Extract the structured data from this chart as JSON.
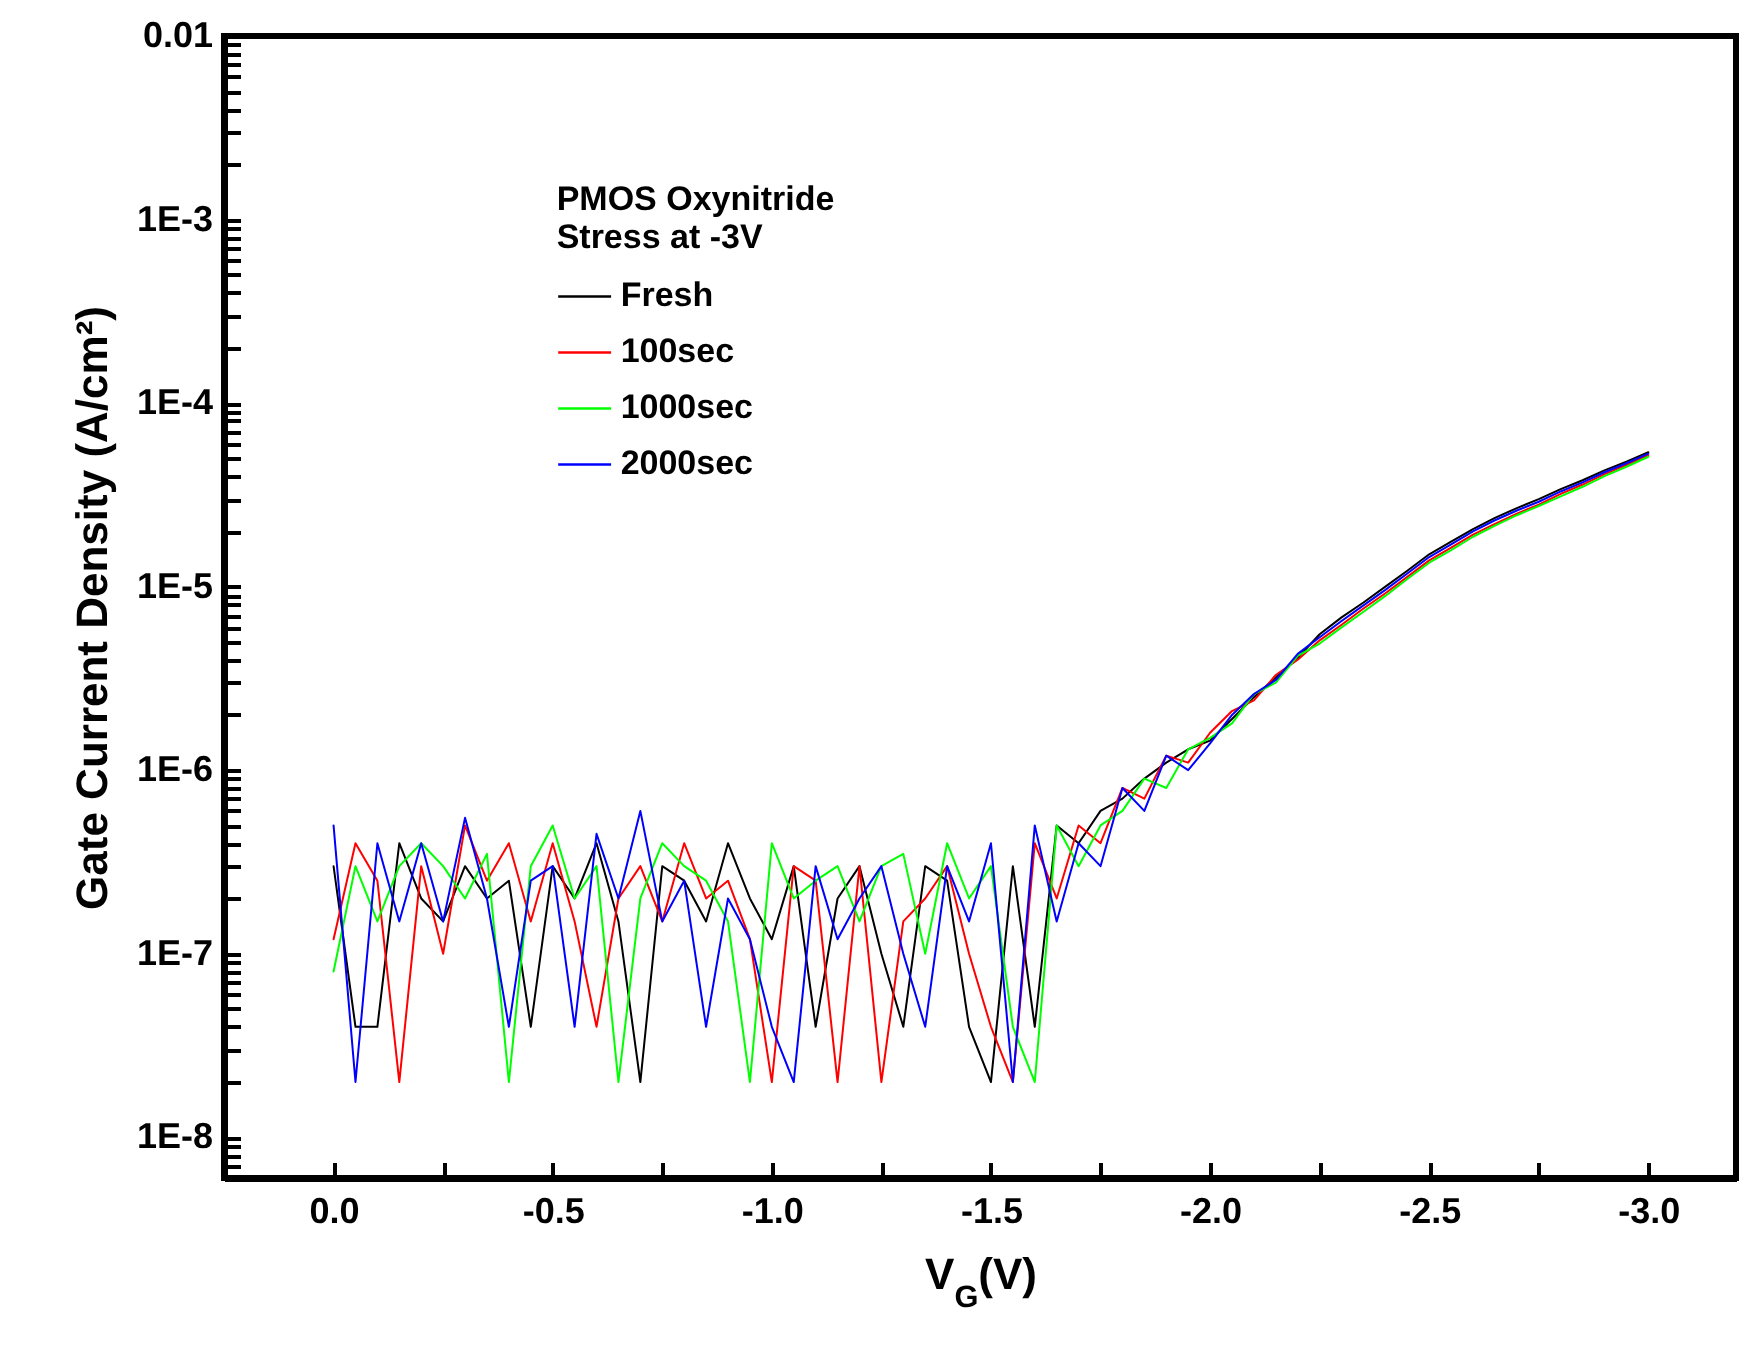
{
  "chart_data": {
    "type": "line",
    "xlabel": "V$_{G}$(V)",
    "ylabel": "Gate Current Density (A/cm²)",
    "legend_title": "PMOS Oxynitride\nStress at -3V",
    "legend": "top left",
    "grid": false,
    "log": true,
    "xlim": [
      0.25,
      -3.2
    ],
    "xticks": [
      {
        "value": 0,
        "label": "0.0"
      },
      {
        "value": -0.25,
        "label": null
      },
      -0.5,
      {
        "value": -0.75,
        "label": null
      },
      {
        "value": -1,
        "label": "-1.0"
      },
      {
        "value": -1.25,
        "label": null
      },
      -1.5,
      {
        "value": -1.75,
        "label": null
      },
      {
        "value": -2,
        "label": "-2.0"
      },
      {
        "value": -2.25,
        "label": null
      },
      -2.5,
      {
        "value": -2.75,
        "label": null
      },
      {
        "value": -3,
        "label": "-3.0"
      }
    ],
    "ylim": [
      6e-09,
      0.01
    ],
    "yticks": [
      {
        "value": 6e-09,
        "label": null
      },
      {
        "value": 7e-09,
        "label": null
      },
      {
        "value": 8e-09,
        "label": null
      },
      {
        "value": 9e-09,
        "label": null
      },
      {
        "value": 1e-08,
        "label": "1E-8"
      },
      {
        "value": 2e-08,
        "label": null
      },
      {
        "value": 3e-08,
        "label": null
      },
      {
        "value": 4e-08,
        "label": null
      },
      {
        "value": 5e-08,
        "label": null
      },
      {
        "value": 6e-08,
        "label": null
      },
      {
        "value": 7e-08,
        "label": null
      },
      {
        "value": 8e-08,
        "label": null
      },
      {
        "value": 9e-08,
        "label": null
      },
      {
        "value": 1e-07,
        "label": "1E-7"
      },
      {
        "value": 2e-07,
        "label": null
      },
      {
        "value": 3e-07,
        "label": null
      },
      {
        "value": 4e-07,
        "label": null
      },
      {
        "value": 5e-07,
        "label": null
      },
      {
        "value": 6e-07,
        "label": null
      },
      {
        "value": 7e-07,
        "label": null
      },
      {
        "value": 8e-07,
        "label": null
      },
      {
        "value": 9e-07,
        "label": null
      },
      {
        "value": 1e-06,
        "label": "1E-6"
      },
      {
        "value": 2e-06,
        "label": null
      },
      {
        "value": 3e-06,
        "label": null
      },
      {
        "value": 4e-06,
        "label": null
      },
      {
        "value": 5e-06,
        "label": null
      },
      {
        "value": 6e-06,
        "label": null
      },
      {
        "value": 7e-06,
        "label": null
      },
      {
        "value": 8e-06,
        "label": null
      },
      {
        "value": 9e-06,
        "label": null
      },
      {
        "value": 1e-05,
        "label": "1E-5"
      },
      {
        "value": 2e-05,
        "label": null
      },
      {
        "value": 3e-05,
        "label": null
      },
      {
        "value": 4e-05,
        "label": null
      },
      {
        "value": 5e-05,
        "label": null
      },
      {
        "value": 6e-05,
        "label": null
      },
      {
        "value": 7e-05,
        "label": null
      },
      {
        "value": 8e-05,
        "label": null
      },
      {
        "value": 9e-05,
        "label": null
      },
      {
        "value": 0.0001,
        "label": "1E-4"
      },
      {
        "value": 0.0002,
        "label": null
      },
      {
        "value": 0.0003,
        "label": null
      },
      {
        "value": 0.0004,
        "label": null
      },
      {
        "value": 0.0005,
        "label": null
      },
      {
        "value": 0.0006,
        "label": null
      },
      {
        "value": 0.0007,
        "label": null
      },
      {
        "value": 0.0008,
        "label": null
      },
      {
        "value": 0.0009,
        "label": null
      },
      {
        "value": 0.001,
        "label": "1E-3"
      },
      {
        "value": 0.002,
        "label": null
      },
      {
        "value": 0.003,
        "label": null
      },
      {
        "value": 0.004,
        "label": null
      },
      {
        "value": 0.005,
        "label": null
      },
      {
        "value": 0.006,
        "label": null
      },
      {
        "value": 0.007,
        "label": null
      },
      {
        "value": 0.008,
        "label": null
      },
      {
        "value": 0.009,
        "label": null
      },
      0.01
    ],
    "x": [
      0,
      -0.05,
      -0.1,
      -0.15,
      -0.2,
      -0.25,
      -0.3,
      -0.35,
      -0.4,
      -0.45,
      -0.5,
      -0.55,
      -0.6,
      -0.65,
      -0.7,
      -0.75,
      -0.8,
      -0.85,
      -0.9,
      -0.95,
      -1,
      -1.05,
      -1.1,
      -1.15,
      -1.2,
      -1.25,
      -1.3,
      -1.35,
      -1.4,
      -1.45,
      -1.5,
      -1.55,
      -1.6,
      -1.65,
      -1.7,
      -1.75,
      -1.8,
      -1.85,
      -1.9,
      -1.95,
      -2,
      -2.05,
      -2.1,
      -2.15,
      -2.2,
      -2.25,
      -2.3,
      -2.35,
      -2.4,
      -2.45,
      -2.5,
      -2.55,
      -2.6,
      -2.65,
      -2.7,
      -2.75,
      -2.8,
      -2.85,
      -2.9,
      -2.95,
      -3
    ],
    "series": [
      {
        "name": "Fresh",
        "color": "#000000",
        "values": [
          3e-07,
          4e-08,
          4e-08,
          4e-07,
          2e-07,
          1.5e-07,
          3e-07,
          2e-07,
          2.5e-07,
          4e-08,
          3e-07,
          2e-07,
          4e-07,
          1.5e-07,
          2e-08,
          3e-07,
          2.5e-07,
          1.5e-07,
          4e-07,
          2e-07,
          1.2e-07,
          3e-07,
          4e-08,
          2e-07,
          3e-07,
          1e-07,
          4e-08,
          3e-07,
          2.5e-07,
          4e-08,
          2e-08,
          3e-07,
          4e-08,
          5e-07,
          4e-07,
          6e-07,
          7e-07,
          9e-07,
          1.1e-06,
          1.3e-06,
          1.45e-06,
          1.9e-06,
          2.5e-06,
          3.2e-06,
          4.1e-06,
          5.5e-06,
          6.8e-06,
          8.2e-06,
          1e-05,
          1.22e-05,
          1.5e-05,
          1.76e-05,
          2.06e-05,
          2.37e-05,
          2.68e-05,
          3e-05,
          3.4e-05,
          3.8e-05,
          4.3e-05,
          4.8e-05,
          5.4e-05
        ]
      },
      {
        "name": "100sec",
        "color": "#ff0000",
        "values": [
          1.2e-07,
          4e-07,
          2.5e-07,
          2e-08,
          3e-07,
          1e-07,
          5e-07,
          2.5e-07,
          4e-07,
          1.5e-07,
          4e-07,
          1.5e-07,
          4e-08,
          2e-07,
          3e-07,
          1.5e-07,
          4e-07,
          2e-07,
          2.5e-07,
          1.2e-07,
          2e-08,
          3e-07,
          2.5e-07,
          2e-08,
          3e-07,
          2e-08,
          1.5e-07,
          2e-07,
          3e-07,
          1e-07,
          4e-08,
          2e-08,
          4e-07,
          2e-07,
          5e-07,
          4e-07,
          8e-07,
          7e-07,
          1.2e-06,
          1.1e-06,
          1.6e-06,
          2.1e-06,
          2.4e-06,
          3.3e-06,
          4e-06,
          5.1e-06,
          6.2e-06,
          7.6e-06,
          9.2e-06,
          1.13e-05,
          1.39e-05,
          1.63e-05,
          1.92e-05,
          2.2e-05,
          2.5e-05,
          2.8e-05,
          3.2e-05,
          3.6e-05,
          4.1e-05,
          4.6e-05,
          5.2e-05
        ]
      },
      {
        "name": "1000sec",
        "color": "#00ff00",
        "values": [
          8e-08,
          3e-07,
          1.5e-07,
          3e-07,
          4e-07,
          3e-07,
          2e-07,
          3.5e-07,
          2e-08,
          3e-07,
          5e-07,
          2e-07,
          3e-07,
          2e-08,
          2e-07,
          4e-07,
          3e-07,
          2.5e-07,
          1.5e-07,
          2e-08,
          4e-07,
          2e-07,
          2.5e-07,
          3e-07,
          1.5e-07,
          3e-07,
          3.5e-07,
          1e-07,
          4e-07,
          2e-07,
          3e-07,
          4e-08,
          2e-08,
          5e-07,
          3e-07,
          5e-07,
          6e-07,
          9e-07,
          8e-07,
          1.3e-06,
          1.5e-06,
          1.8e-06,
          2.6e-06,
          3e-06,
          4.2e-06,
          4.9e-06,
          6e-06,
          7.3e-06,
          8.9e-06,
          1.1e-05,
          1.35e-05,
          1.58e-05,
          1.87e-05,
          2.15e-05,
          2.45e-05,
          2.75e-05,
          3.1e-05,
          3.5e-05,
          4e-05,
          4.5e-05,
          5.1e-05
        ]
      },
      {
        "name": "2000sec",
        "color": "#0000ff",
        "values": [
          5e-07,
          2e-08,
          4e-07,
          1.5e-07,
          4e-07,
          1.5e-07,
          5.5e-07,
          2e-07,
          4e-08,
          2.5e-07,
          3e-07,
          4e-08,
          4.5e-07,
          2e-07,
          6e-07,
          1.5e-07,
          2.5e-07,
          4e-08,
          2e-07,
          1.2e-07,
          4e-08,
          2e-08,
          3e-07,
          1.2e-07,
          2e-07,
          3e-07,
          1e-07,
          4e-08,
          3e-07,
          1.5e-07,
          4e-07,
          2e-08,
          5e-07,
          1.5e-07,
          4e-07,
          3e-07,
          8e-07,
          6e-07,
          1.2e-06,
          1e-06,
          1.4e-06,
          2e-06,
          2.6e-06,
          3.1e-06,
          4.3e-06,
          5.3e-06,
          6.5e-06,
          7.9e-06,
          9.6e-06,
          1.18e-05,
          1.45e-05,
          1.7e-05,
          2e-05,
          2.3e-05,
          2.6e-05,
          2.9e-05,
          3.3e-05,
          3.7e-05,
          4.2e-05,
          4.7e-05,
          5.3e-05
        ]
      }
    ]
  }
}
